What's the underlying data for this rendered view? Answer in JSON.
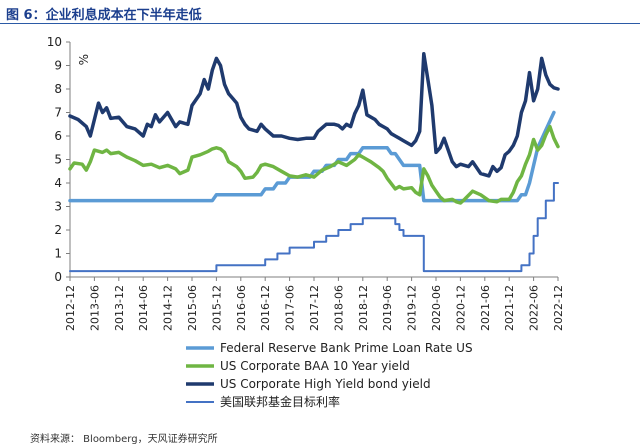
{
  "figure": {
    "title": "图 6：企业利息成本在下半年走低",
    "source": "资料来源： Bloomberg，天风证券研究所"
  },
  "chart_data": {
    "type": "line",
    "title": "",
    "ylabel": "%",
    "ylim": [
      0,
      10
    ],
    "yticks": [
      0,
      1,
      2,
      3,
      4,
      5,
      6,
      7,
      8,
      9,
      10
    ],
    "xlim": [
      "2012-12",
      "2022-12"
    ],
    "xticks": [
      "2012-12",
      "2013-06",
      "2013-12",
      "2014-06",
      "2014-12",
      "2015-06",
      "2015-12",
      "2016-06",
      "2016-12",
      "2017-06",
      "2017-12",
      "2018-06",
      "2018-12",
      "2019-06",
      "2019-12",
      "2020-06",
      "2020-12",
      "2021-06",
      "2021-12",
      "2022-06",
      "2022-12"
    ],
    "grid": false,
    "legend_position": "bottom",
    "series": [
      {
        "name": "Federal Reserve Bank Prime Loan Rate US",
        "color": "#5b9bd5",
        "width": 3.5,
        "points": [
          [
            "2012-12",
            3.25
          ],
          [
            "2015-11",
            3.25
          ],
          [
            "2015-12",
            3.5
          ],
          [
            "2016-11",
            3.5
          ],
          [
            "2016-12",
            3.75
          ],
          [
            "2017-02",
            3.75
          ],
          [
            "2017-03",
            4.0
          ],
          [
            "2017-05",
            4.0
          ],
          [
            "2017-06",
            4.25
          ],
          [
            "2017-11",
            4.25
          ],
          [
            "2017-12",
            4.5
          ],
          [
            "2018-02",
            4.5
          ],
          [
            "2018-03",
            4.75
          ],
          [
            "2018-05",
            4.75
          ],
          [
            "2018-06",
            5.0
          ],
          [
            "2018-08",
            5.0
          ],
          [
            "2018-09",
            5.25
          ],
          [
            "2018-11",
            5.25
          ],
          [
            "2018-12",
            5.5
          ],
          [
            "2019-06",
            5.5
          ],
          [
            "2019-07",
            5.25
          ],
          [
            "2019-08",
            5.25
          ],
          [
            "2019-09",
            5.0
          ],
          [
            "2019-10",
            4.75
          ],
          [
            "2020-02",
            4.75
          ],
          [
            "2020-03",
            3.25
          ],
          [
            "2022-02",
            3.25
          ],
          [
            "2022-03",
            3.5
          ],
          [
            "2022-04",
            3.5
          ],
          [
            "2022-05",
            4.0
          ],
          [
            "2022-06",
            4.75
          ],
          [
            "2022-07",
            5.5
          ],
          [
            "2022-09",
            6.25
          ],
          [
            "2022-11",
            7.0
          ]
        ]
      },
      {
        "name": "US Corporate BAA 10 Year yield",
        "color": "#6fb543",
        "width": 3.5,
        "points": [
          [
            "2012-12",
            4.6
          ],
          [
            "2013-01",
            4.85
          ],
          [
            "2013-03",
            4.8
          ],
          [
            "2013-04",
            4.55
          ],
          [
            "2013-05",
            4.9
          ],
          [
            "2013-06",
            5.4
          ],
          [
            "2013-08",
            5.3
          ],
          [
            "2013-09",
            5.4
          ],
          [
            "2013-10",
            5.25
          ],
          [
            "2013-12",
            5.3
          ],
          [
            "2014-02",
            5.1
          ],
          [
            "2014-04",
            4.95
          ],
          [
            "2014-06",
            4.75
          ],
          [
            "2014-08",
            4.8
          ],
          [
            "2014-10",
            4.65
          ],
          [
            "2014-12",
            4.75
          ],
          [
            "2015-02",
            4.6
          ],
          [
            "2015-03",
            4.4
          ],
          [
            "2015-05",
            4.55
          ],
          [
            "2015-06",
            5.1
          ],
          [
            "2015-08",
            5.2
          ],
          [
            "2015-10",
            5.35
          ],
          [
            "2015-11",
            5.45
          ],
          [
            "2015-12",
            5.5
          ],
          [
            "2016-01",
            5.45
          ],
          [
            "2016-02",
            5.3
          ],
          [
            "2016-03",
            4.9
          ],
          [
            "2016-05",
            4.7
          ],
          [
            "2016-06",
            4.5
          ],
          [
            "2016-07",
            4.2
          ],
          [
            "2016-09",
            4.25
          ],
          [
            "2016-10",
            4.45
          ],
          [
            "2016-11",
            4.75
          ],
          [
            "2016-12",
            4.8
          ],
          [
            "2017-02",
            4.7
          ],
          [
            "2017-04",
            4.5
          ],
          [
            "2017-06",
            4.3
          ],
          [
            "2017-08",
            4.25
          ],
          [
            "2017-10",
            4.35
          ],
          [
            "2017-12",
            4.25
          ],
          [
            "2018-02",
            4.55
          ],
          [
            "2018-04",
            4.7
          ],
          [
            "2018-06",
            4.9
          ],
          [
            "2018-08",
            4.75
          ],
          [
            "2018-10",
            5.0
          ],
          [
            "2018-11",
            5.2
          ],
          [
            "2018-12",
            5.1
          ],
          [
            "2019-01",
            5.0
          ],
          [
            "2019-02",
            4.9
          ],
          [
            "2019-04",
            4.65
          ],
          [
            "2019-05",
            4.5
          ],
          [
            "2019-06",
            4.2
          ],
          [
            "2019-08",
            3.75
          ],
          [
            "2019-09",
            3.85
          ],
          [
            "2019-10",
            3.75
          ],
          [
            "2019-12",
            3.8
          ],
          [
            "2020-01",
            3.6
          ],
          [
            "2020-02",
            3.5
          ],
          [
            "2020-03",
            4.6
          ],
          [
            "2020-04",
            4.3
          ],
          [
            "2020-05",
            3.9
          ],
          [
            "2020-06",
            3.65
          ],
          [
            "2020-07",
            3.4
          ],
          [
            "2020-08",
            3.25
          ],
          [
            "2020-10",
            3.3
          ],
          [
            "2020-11",
            3.2
          ],
          [
            "2020-12",
            3.15
          ],
          [
            "2021-01",
            3.3
          ],
          [
            "2021-03",
            3.65
          ],
          [
            "2021-05",
            3.5
          ],
          [
            "2021-07",
            3.25
          ],
          [
            "2021-09",
            3.2
          ],
          [
            "2021-10",
            3.3
          ],
          [
            "2021-12",
            3.3
          ],
          [
            "2022-01",
            3.6
          ],
          [
            "2022-02",
            4.05
          ],
          [
            "2022-03",
            4.3
          ],
          [
            "2022-04",
            4.8
          ],
          [
            "2022-05",
            5.2
          ],
          [
            "2022-06",
            5.85
          ],
          [
            "2022-07",
            5.4
          ],
          [
            "2022-08",
            5.6
          ],
          [
            "2022-09",
            6.05
          ],
          [
            "2022-10",
            6.4
          ],
          [
            "2022-11",
            5.9
          ],
          [
            "2022-12",
            5.55
          ]
        ]
      },
      {
        "name": "US Corporate High Yield bond yield",
        "color": "#1f3a6e",
        "width": 3.5,
        "points": [
          [
            "2012-12",
            6.85
          ],
          [
            "2013-02",
            6.7
          ],
          [
            "2013-04",
            6.4
          ],
          [
            "2013-05",
            6.0
          ],
          [
            "2013-07",
            7.4
          ],
          [
            "2013-08",
            7.0
          ],
          [
            "2013-09",
            7.2
          ],
          [
            "2013-10",
            6.75
          ],
          [
            "2013-12",
            6.8
          ],
          [
            "2014-02",
            6.4
          ],
          [
            "2014-04",
            6.3
          ],
          [
            "2014-06",
            6.0
          ],
          [
            "2014-07",
            6.5
          ],
          [
            "2014-08",
            6.4
          ],
          [
            "2014-09",
            6.9
          ],
          [
            "2014-10",
            6.6
          ],
          [
            "2014-12",
            7.0
          ],
          [
            "2015-02",
            6.4
          ],
          [
            "2015-03",
            6.6
          ],
          [
            "2015-05",
            6.5
          ],
          [
            "2015-06",
            7.3
          ],
          [
            "2015-08",
            7.8
          ],
          [
            "2015-09",
            8.4
          ],
          [
            "2015-10",
            8.0
          ],
          [
            "2015-11",
            8.8
          ],
          [
            "2015-12",
            9.3
          ],
          [
            "2016-01",
            9.0
          ],
          [
            "2016-02",
            8.2
          ],
          [
            "2016-03",
            7.8
          ],
          [
            "2016-04",
            7.6
          ],
          [
            "2016-05",
            7.4
          ],
          [
            "2016-06",
            6.8
          ],
          [
            "2016-07",
            6.5
          ],
          [
            "2016-08",
            6.3
          ],
          [
            "2016-10",
            6.2
          ],
          [
            "2016-11",
            6.5
          ],
          [
            "2016-12",
            6.3
          ],
          [
            "2017-02",
            6.0
          ],
          [
            "2017-04",
            6.0
          ],
          [
            "2017-06",
            5.9
          ],
          [
            "2017-08",
            5.85
          ],
          [
            "2017-10",
            5.9
          ],
          [
            "2017-12",
            5.9
          ],
          [
            "2018-01",
            6.2
          ],
          [
            "2018-03",
            6.5
          ],
          [
            "2018-05",
            6.5
          ],
          [
            "2018-06",
            6.45
          ],
          [
            "2018-07",
            6.3
          ],
          [
            "2018-08",
            6.5
          ],
          [
            "2018-09",
            6.4
          ],
          [
            "2018-10",
            6.95
          ],
          [
            "2018-11",
            7.3
          ],
          [
            "2018-12",
            7.95
          ],
          [
            "2019-01",
            6.9
          ],
          [
            "2019-03",
            6.7
          ],
          [
            "2019-04",
            6.5
          ],
          [
            "2019-06",
            6.3
          ],
          [
            "2019-07",
            6.1
          ],
          [
            "2019-08",
            6.0
          ],
          [
            "2019-09",
            5.9
          ],
          [
            "2019-10",
            5.8
          ],
          [
            "2019-12",
            5.6
          ],
          [
            "2020-01",
            5.8
          ],
          [
            "2020-02",
            6.2
          ],
          [
            "2020-03",
            9.5
          ],
          [
            "2020-04",
            8.4
          ],
          [
            "2020-05",
            7.3
          ],
          [
            "2020-06",
            5.3
          ],
          [
            "2020-07",
            5.5
          ],
          [
            "2020-08",
            5.9
          ],
          [
            "2020-09",
            5.4
          ],
          [
            "2020-10",
            4.9
          ],
          [
            "2020-11",
            4.7
          ],
          [
            "2020-12",
            4.8
          ],
          [
            "2021-02",
            4.7
          ],
          [
            "2021-03",
            4.9
          ],
          [
            "2021-05",
            4.4
          ],
          [
            "2021-07",
            4.3
          ],
          [
            "2021-08",
            4.7
          ],
          [
            "2021-09",
            4.5
          ],
          [
            "2021-10",
            4.65
          ],
          [
            "2021-11",
            5.2
          ],
          [
            "2021-12",
            5.35
          ],
          [
            "2022-01",
            5.6
          ],
          [
            "2022-02",
            6.0
          ],
          [
            "2022-03",
            7.0
          ],
          [
            "2022-04",
            7.5
          ],
          [
            "2022-05",
            8.7
          ],
          [
            "2022-06",
            7.5
          ],
          [
            "2022-07",
            8.0
          ],
          [
            "2022-08",
            9.3
          ],
          [
            "2022-09",
            8.6
          ],
          [
            "2022-10",
            8.2
          ],
          [
            "2022-11",
            8.05
          ],
          [
            "2022-12",
            8.0
          ]
        ]
      },
      {
        "name": "美国联邦基金目标利率",
        "color": "#4472c4",
        "width": 2,
        "step": true,
        "points": [
          [
            "2012-12",
            0.25
          ],
          [
            "2015-12",
            0.5
          ],
          [
            "2016-12",
            0.75
          ],
          [
            "2017-03",
            1.0
          ],
          [
            "2017-06",
            1.25
          ],
          [
            "2017-12",
            1.5
          ],
          [
            "2018-03",
            1.75
          ],
          [
            "2018-06",
            2.0
          ],
          [
            "2018-09",
            2.25
          ],
          [
            "2018-12",
            2.5
          ],
          [
            "2019-08",
            2.25
          ],
          [
            "2019-09",
            2.0
          ],
          [
            "2019-10",
            1.75
          ],
          [
            "2020-03",
            0.25
          ],
          [
            "2022-03",
            0.5
          ],
          [
            "2022-05",
            1.0
          ],
          [
            "2022-06",
            1.75
          ],
          [
            "2022-07",
            2.5
          ],
          [
            "2022-09",
            3.25
          ],
          [
            "2022-11",
            4.0
          ],
          [
            "2022-12",
            4.0
          ]
        ]
      }
    ]
  }
}
